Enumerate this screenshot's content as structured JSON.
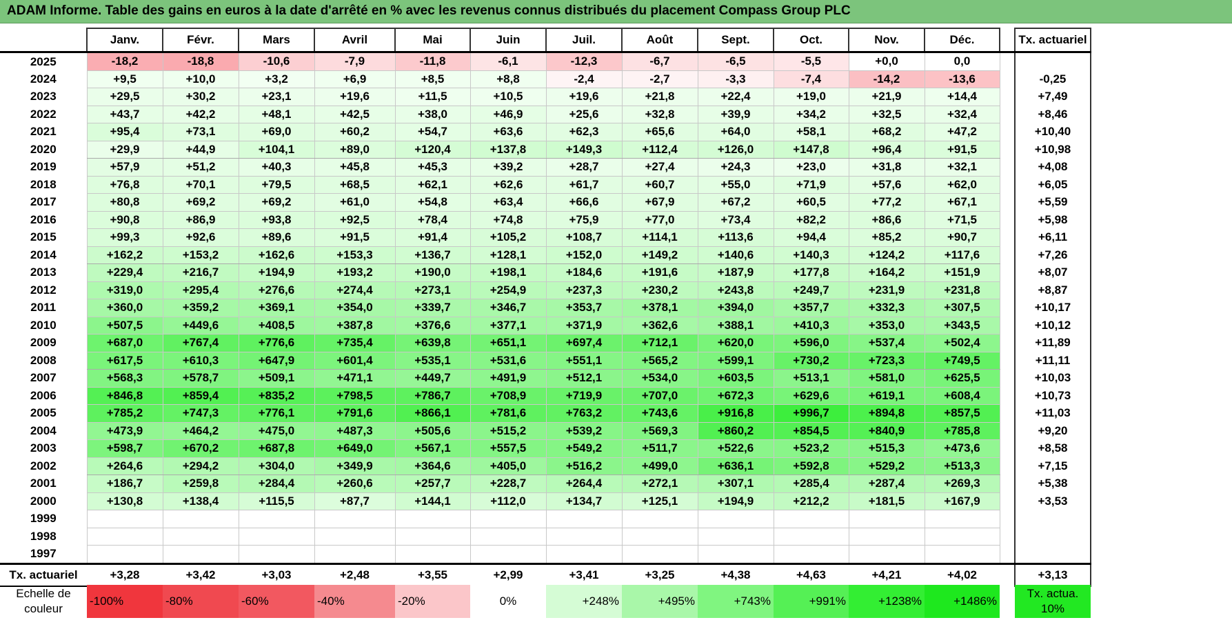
{
  "title": "ADAM Informe. Table des gains en euros à la date d'arrêté en % avec les revenus connus distribués du placement Compass Group PLC",
  "months": [
    "Janv.",
    "Févr.",
    "Mars",
    "Avril",
    "Mai",
    "Juin",
    "Juil.",
    "Août",
    "Sept.",
    "Oct.",
    "Nov.",
    "Déc."
  ],
  "tx_header": "Tx. actuariel",
  "rows": [
    {
      "year": "2025",
      "values": [
        "-18,2",
        "-18,8",
        "-10,6",
        "-7,9",
        "-11,8",
        "-6,1",
        "-12,3",
        "-6,7",
        "-6,5",
        "-5,5",
        "+0,0",
        "0,0"
      ],
      "tx": ""
    },
    {
      "year": "2024",
      "values": [
        "+9,5",
        "+10,0",
        "+3,2",
        "+6,9",
        "+8,5",
        "+8,8",
        "-2,4",
        "-2,7",
        "-3,3",
        "-7,4",
        "-14,2",
        "-13,6"
      ],
      "tx": "-0,25"
    },
    {
      "year": "2023",
      "values": [
        "+29,5",
        "+30,2",
        "+23,1",
        "+19,6",
        "+11,5",
        "+10,5",
        "+19,6",
        "+21,8",
        "+22,4",
        "+19,0",
        "+21,9",
        "+14,4"
      ],
      "tx": "+7,49"
    },
    {
      "year": "2022",
      "values": [
        "+43,7",
        "+42,2",
        "+48,1",
        "+42,5",
        "+38,0",
        "+46,9",
        "+25,6",
        "+32,8",
        "+39,9",
        "+34,2",
        "+32,5",
        "+32,4"
      ],
      "tx": "+8,46"
    },
    {
      "year": "2021",
      "values": [
        "+95,4",
        "+73,1",
        "+69,0",
        "+60,2",
        "+54,7",
        "+63,6",
        "+62,3",
        "+65,6",
        "+64,0",
        "+58,1",
        "+68,2",
        "+47,2"
      ],
      "tx": "+10,40"
    },
    {
      "year": "2020",
      "values": [
        "+29,9",
        "+44,9",
        "+104,1",
        "+89,0",
        "+120,4",
        "+137,8",
        "+149,3",
        "+112,4",
        "+126,0",
        "+147,8",
        "+96,4",
        "+91,5"
      ],
      "tx": "+10,98"
    },
    {
      "year": "2019",
      "values": [
        "+57,9",
        "+51,2",
        "+40,3",
        "+45,8",
        "+45,3",
        "+39,2",
        "+28,7",
        "+27,4",
        "+24,3",
        "+23,0",
        "+31,8",
        "+32,1"
      ],
      "tx": "+4,08"
    },
    {
      "year": "2018",
      "values": [
        "+76,8",
        "+70,1",
        "+79,5",
        "+68,5",
        "+62,1",
        "+62,6",
        "+61,7",
        "+60,7",
        "+55,0",
        "+71,9",
        "+57,6",
        "+62,0"
      ],
      "tx": "+6,05"
    },
    {
      "year": "2017",
      "values": [
        "+80,8",
        "+69,2",
        "+69,2",
        "+61,0",
        "+54,8",
        "+63,4",
        "+66,6",
        "+67,9",
        "+67,2",
        "+60,5",
        "+77,2",
        "+67,1"
      ],
      "tx": "+5,59"
    },
    {
      "year": "2016",
      "values": [
        "+90,8",
        "+86,9",
        "+93,8",
        "+92,5",
        "+78,4",
        "+74,8",
        "+75,9",
        "+77,0",
        "+73,4",
        "+82,2",
        "+86,6",
        "+71,5"
      ],
      "tx": "+5,98"
    },
    {
      "year": "2015",
      "values": [
        "+99,3",
        "+92,6",
        "+89,6",
        "+91,5",
        "+91,4",
        "+105,2",
        "+108,7",
        "+114,1",
        "+113,6",
        "+94,4",
        "+85,2",
        "+90,7"
      ],
      "tx": "+6,11"
    },
    {
      "year": "2014",
      "values": [
        "+162,2",
        "+153,2",
        "+162,6",
        "+153,3",
        "+136,7",
        "+128,1",
        "+152,0",
        "+149,2",
        "+140,6",
        "+140,3",
        "+124,2",
        "+117,6"
      ],
      "tx": "+7,26"
    },
    {
      "year": "2013",
      "values": [
        "+229,4",
        "+216,7",
        "+194,9",
        "+193,2",
        "+190,0",
        "+198,1",
        "+184,6",
        "+191,6",
        "+187,9",
        "+177,8",
        "+164,2",
        "+151,9"
      ],
      "tx": "+8,07"
    },
    {
      "year": "2012",
      "values": [
        "+319,0",
        "+295,4",
        "+276,6",
        "+274,4",
        "+273,1",
        "+254,9",
        "+237,3",
        "+230,2",
        "+243,8",
        "+249,7",
        "+231,9",
        "+231,8"
      ],
      "tx": "+8,87"
    },
    {
      "year": "2011",
      "values": [
        "+360,0",
        "+359,2",
        "+369,1",
        "+354,0",
        "+339,7",
        "+346,7",
        "+353,7",
        "+378,1",
        "+394,0",
        "+357,7",
        "+332,3",
        "+307,5"
      ],
      "tx": "+10,17"
    },
    {
      "year": "2010",
      "values": [
        "+507,5",
        "+449,6",
        "+408,5",
        "+387,8",
        "+376,6",
        "+377,1",
        "+371,9",
        "+362,6",
        "+388,1",
        "+410,3",
        "+353,0",
        "+343,5"
      ],
      "tx": "+10,12"
    },
    {
      "year": "2009",
      "values": [
        "+687,0",
        "+767,4",
        "+776,6",
        "+735,4",
        "+639,8",
        "+651,1",
        "+697,4",
        "+712,1",
        "+620,0",
        "+596,0",
        "+537,4",
        "+502,4"
      ],
      "tx": "+11,89"
    },
    {
      "year": "2008",
      "values": [
        "+617,5",
        "+610,3",
        "+647,9",
        "+601,4",
        "+535,1",
        "+531,6",
        "+551,1",
        "+565,2",
        "+599,1",
        "+730,2",
        "+723,3",
        "+749,5"
      ],
      "tx": "+11,11"
    },
    {
      "year": "2007",
      "values": [
        "+568,3",
        "+578,7",
        "+509,1",
        "+471,1",
        "+449,7",
        "+491,9",
        "+512,1",
        "+534,0",
        "+603,5",
        "+513,1",
        "+581,0",
        "+625,5"
      ],
      "tx": "+10,03"
    },
    {
      "year": "2006",
      "values": [
        "+846,8",
        "+859,4",
        "+835,2",
        "+798,5",
        "+786,7",
        "+708,9",
        "+719,9",
        "+707,0",
        "+672,3",
        "+629,6",
        "+619,1",
        "+608,4"
      ],
      "tx": "+10,73"
    },
    {
      "year": "2005",
      "values": [
        "+785,2",
        "+747,3",
        "+776,1",
        "+791,6",
        "+866,1",
        "+781,6",
        "+763,2",
        "+743,6",
        "+916,8",
        "+996,7",
        "+894,8",
        "+857,5"
      ],
      "tx": "+11,03"
    },
    {
      "year": "2004",
      "values": [
        "+473,9",
        "+464,2",
        "+475,0",
        "+487,3",
        "+505,6",
        "+515,2",
        "+539,2",
        "+569,3",
        "+860,2",
        "+854,5",
        "+840,9",
        "+785,8"
      ],
      "tx": "+9,20"
    },
    {
      "year": "2003",
      "values": [
        "+598,7",
        "+670,2",
        "+687,8",
        "+649,0",
        "+567,1",
        "+557,5",
        "+549,2",
        "+511,7",
        "+522,6",
        "+523,2",
        "+515,3",
        "+473,6"
      ],
      "tx": "+8,58"
    },
    {
      "year": "2002",
      "values": [
        "+264,6",
        "+294,2",
        "+304,0",
        "+349,9",
        "+364,6",
        "+405,0",
        "+516,2",
        "+499,0",
        "+636,1",
        "+592,8",
        "+529,2",
        "+513,3"
      ],
      "tx": "+7,15"
    },
    {
      "year": "2001",
      "values": [
        "+186,7",
        "+259,8",
        "+284,4",
        "+260,6",
        "+257,7",
        "+228,7",
        "+264,4",
        "+272,1",
        "+307,1",
        "+285,4",
        "+287,4",
        "+269,3"
      ],
      "tx": "+5,38"
    },
    {
      "year": "2000",
      "values": [
        "+130,8",
        "+138,4",
        "+115,5",
        "+87,7",
        "+144,1",
        "+112,0",
        "+134,7",
        "+125,1",
        "+194,9",
        "+212,2",
        "+181,5",
        "+167,9"
      ],
      "tx": "+3,53"
    },
    {
      "year": "1999",
      "values": [
        "",
        "",
        "",
        "",
        "",
        "",
        "",
        "",
        "",
        "",
        "",
        ""
      ],
      "tx": ""
    },
    {
      "year": "1998",
      "values": [
        "",
        "",
        "",
        "",
        "",
        "",
        "",
        "",
        "",
        "",
        "",
        ""
      ],
      "tx": ""
    },
    {
      "year": "1997",
      "values": [
        "",
        "",
        "",
        "",
        "",
        "",
        "",
        "",
        "",
        "",
        "",
        ""
      ],
      "tx": ""
    }
  ],
  "footer": {
    "label": "Tx. actuariel",
    "values": [
      "+3,28",
      "+3,42",
      "+3,03",
      "+2,48",
      "+3,55",
      "+2,99",
      "+3,41",
      "+3,25",
      "+4,38",
      "+4,63",
      "+4,21",
      "+4,02"
    ],
    "tx": "+3,13"
  },
  "scale": {
    "label": "Echelle de couleur",
    "items": [
      {
        "text": "-100%",
        "color": "#f0363d"
      },
      {
        "text": "-80%",
        "color": "#f04950"
      },
      {
        "text": "-60%",
        "color": "#f25860"
      },
      {
        "text": "-40%",
        "color": "#f58a8f"
      },
      {
        "text": "-20%",
        "color": "#fbc6c9"
      },
      {
        "text": "0%",
        "color": "#ffffff"
      },
      {
        "text": "+248%",
        "color": "#d5fcd5"
      },
      {
        "text": "+495%",
        "color": "#a9f7a9"
      },
      {
        "text": "+743%",
        "color": "#80f580"
      },
      {
        "text": "+991%",
        "color": "#55f055"
      },
      {
        "text": "+1238%",
        "color": "#33ee33"
      },
      {
        "text": "+1486%",
        "color": "#1ee81e"
      }
    ],
    "tx_label": "Tx. actua. 10%",
    "tx_color": "#22e822"
  }
}
